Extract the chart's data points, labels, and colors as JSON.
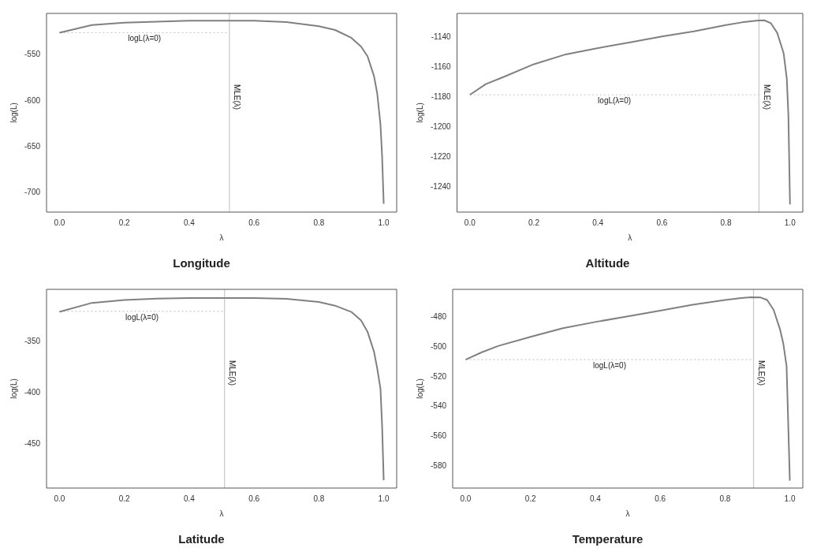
{
  "chart_data": [
    {
      "type": "line",
      "title": "Longitude",
      "xlabel": "λ",
      "ylabel": "log(L)",
      "x": [
        0,
        0.1,
        0.2,
        0.3,
        0.4,
        0.5,
        0.6,
        0.7,
        0.8,
        0.85,
        0.9,
        0.93,
        0.95,
        0.97,
        0.98,
        0.99,
        0.995,
        1.0
      ],
      "series": [
        {
          "color": "#808080",
          "values": [
            -526,
            -517.6,
            -515,
            -514,
            -513,
            -513,
            -513,
            -514.5,
            -519,
            -523,
            -531.5,
            -541,
            -551.5,
            -573,
            -592,
            -625.6,
            -659.6,
            -712
          ]
        }
      ],
      "xlim": [
        -0.04,
        1.04
      ],
      "xticks": [
        {
          "value": 0,
          "label": "0.0"
        },
        {
          "value": 0.2,
          "label": "0.2"
        },
        {
          "value": 0.4,
          "label": "0.4"
        },
        {
          "value": 0.6,
          "label": "0.6"
        },
        {
          "value": 0.8,
          "label": "0.8"
        },
        {
          "value": 1,
          "label": "1.0"
        }
      ],
      "ylim": [
        -721,
        -505
      ],
      "yticks": [
        -700,
        -650,
        -600,
        -550
      ],
      "ref_lines": [
        {
          "axis": "x",
          "value": 0.524,
          "label": "MLE(λ)",
          "color": "#c8c8c8",
          "line_style": "solid"
        },
        {
          "axis": "y",
          "value": -526,
          "color": "#c8c8c8",
          "line_style": "dotted"
        }
      ],
      "annotations": [
        "logL(λ=0)"
      ],
      "grid": false,
      "legend": false
    },
    {
      "type": "line",
      "title": "Altitude",
      "xlabel": "λ",
      "ylabel": "log(L)",
      "x": [
        0,
        0.05,
        0.1,
        0.2,
        0.3,
        0.4,
        0.5,
        0.6,
        0.7,
        0.8,
        0.85,
        0.9,
        0.92,
        0.94,
        0.96,
        0.98,
        0.99,
        0.995,
        1.0
      ],
      "series": [
        {
          "color": "#808080",
          "values": [
            -1178.5,
            -1171.3,
            -1167,
            -1158,
            -1151.4,
            -1147.2,
            -1143.4,
            -1139.4,
            -1136,
            -1131.8,
            -1130,
            -1128.8,
            -1128.6,
            -1130.5,
            -1137,
            -1150.5,
            -1167.6,
            -1192.4,
            -1251.8
          ]
        }
      ],
      "xlim": [
        -0.04,
        1.04
      ],
      "xticks": [
        {
          "value": 0,
          "label": "0.0"
        },
        {
          "value": 0.2,
          "label": "0.2"
        },
        {
          "value": 0.4,
          "label": "0.4"
        },
        {
          "value": 0.6,
          "label": "0.6"
        },
        {
          "value": 0.8,
          "label": "0.8"
        },
        {
          "value": 1,
          "label": "1.0"
        }
      ],
      "ylim": [
        -1257,
        -1124
      ],
      "yticks": [
        -1240,
        -1220,
        -1200,
        -1180,
        -1160,
        -1140
      ],
      "ref_lines": [
        {
          "axis": "x",
          "value": 0.903,
          "label": "MLE(λ)",
          "color": "#c8c8c8",
          "line_style": "solid"
        },
        {
          "axis": "y",
          "value": -1178.5,
          "color": "#c8c8c8",
          "line_style": "dotted"
        }
      ],
      "annotations": [
        "logL(λ=0)"
      ],
      "grid": false,
      "legend": false
    },
    {
      "type": "line",
      "title": "Latitude",
      "xlabel": "λ",
      "ylabel": "log(L)",
      "x": [
        0,
        0.1,
        0.2,
        0.3,
        0.4,
        0.5,
        0.6,
        0.7,
        0.8,
        0.85,
        0.9,
        0.93,
        0.95,
        0.97,
        0.98,
        0.99,
        0.995,
        1.0
      ],
      "series": [
        {
          "color": "#808080",
          "values": [
            -321,
            -312.2,
            -309.4,
            -308,
            -307.5,
            -307.5,
            -307.5,
            -308.3,
            -311.3,
            -314.9,
            -321,
            -329.3,
            -340.3,
            -359.7,
            -376.2,
            -395.9,
            -431.5,
            -485.4
          ]
        }
      ],
      "xlim": [
        -0.04,
        1.04
      ],
      "xticks": [
        {
          "value": 0,
          "label": "0.0"
        },
        {
          "value": 0.2,
          "label": "0.2"
        },
        {
          "value": 0.4,
          "label": "0.4"
        },
        {
          "value": 0.6,
          "label": "0.6"
        },
        {
          "value": 0.8,
          "label": "0.8"
        },
        {
          "value": 1,
          "label": "1.0"
        }
      ],
      "ylim": [
        -493,
        -299
      ],
      "yticks": [
        -450,
        -400,
        -350
      ],
      "ref_lines": [
        {
          "axis": "x",
          "value": 0.509,
          "label": "MLE(λ)",
          "color": "#c8c8c8",
          "line_style": "solid"
        },
        {
          "axis": "y",
          "value": -320.4,
          "color": "#c8c8c8",
          "line_style": "dotted"
        }
      ],
      "annotations": [
        "logL(λ=0)"
      ],
      "grid": false,
      "legend": false
    },
    {
      "type": "line",
      "title": "Temperature",
      "xlabel": "λ",
      "ylabel": "log(L)",
      "x": [
        0,
        0.05,
        0.1,
        0.2,
        0.3,
        0.4,
        0.5,
        0.6,
        0.7,
        0.8,
        0.85,
        0.88,
        0.91,
        0.93,
        0.95,
        0.97,
        0.98,
        0.99,
        1.0
      ],
      "series": [
        {
          "color": "#808080",
          "values": [
            -508.4,
            -503.4,
            -499.2,
            -493,
            -487.2,
            -483,
            -479.2,
            -475.4,
            -471.4,
            -468.2,
            -466.9,
            -466.3,
            -466.5,
            -468.2,
            -474.8,
            -488.2,
            -497.7,
            -512.9,
            -590
          ]
        }
      ],
      "xlim": [
        -0.04,
        1.04
      ],
      "xticks": [
        {
          "value": 0,
          "label": "0.0"
        },
        {
          "value": 0.2,
          "label": "0.2"
        },
        {
          "value": 0.4,
          "label": "0.4"
        },
        {
          "value": 0.6,
          "label": "0.6"
        },
        {
          "value": 0.8,
          "label": "0.8"
        },
        {
          "value": 1,
          "label": "1.0"
        }
      ],
      "ylim": [
        -595,
        -461
      ],
      "yticks": [
        -580,
        -560,
        -540,
        -520,
        -500,
        -480
      ],
      "ref_lines": [
        {
          "axis": "x",
          "value": 0.888,
          "label": "MLE(λ)",
          "color": "#c8c8c8",
          "line_style": "solid"
        },
        {
          "axis": "y",
          "value": -508.4,
          "color": "#c8c8c8",
          "line_style": "dotted"
        }
      ],
      "annotations": [
        "logL(λ=0)"
      ],
      "grid": false,
      "legend": false
    }
  ]
}
